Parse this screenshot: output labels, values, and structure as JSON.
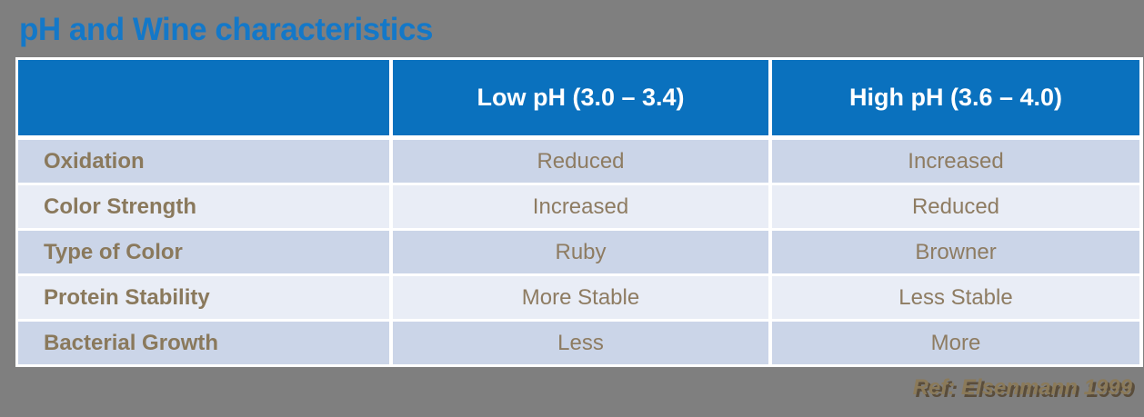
{
  "title": "pH and Wine characteristics",
  "table": {
    "columns": [
      "",
      "Low pH (3.0 – 3.4)",
      "High pH (3.6 – 4.0)"
    ],
    "rows": [
      {
        "label": "Oxidation",
        "low": "Reduced",
        "high": "Increased"
      },
      {
        "label": "Color Strength",
        "low": "Increased",
        "high": "Reduced"
      },
      {
        "label": "Type of Color",
        "low": "Ruby",
        "high": "Browner"
      },
      {
        "label": "Protein Stability",
        "low": "More Stable",
        "high": "Less Stable"
      },
      {
        "label": "Bacterial Growth",
        "low": "Less",
        "high": "More"
      }
    ]
  },
  "footer": {
    "reference": "Ref: Elsenmann 1999"
  },
  "colors": {
    "background_gray": "#7f7f7f",
    "title_blue": "#1478c8",
    "header_blue": "#0a71be",
    "row_dark": "#cbd5e8",
    "row_light": "#e9edf6",
    "label_brown": "#8a795c",
    "value_brown": "#8e7c62",
    "reference_tan": "#8b7a59",
    "border_white": "#ffffff"
  }
}
